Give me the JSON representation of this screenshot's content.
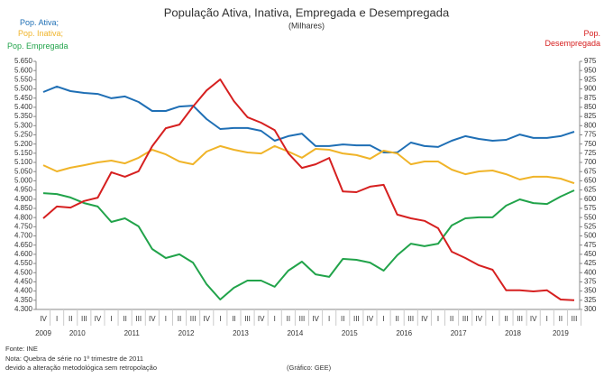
{
  "chart_data": {
    "type": "line",
    "title": "População Ativa, Inativa, Empregada  e Desempregada",
    "subtitle": "(Milhares)",
    "categories": [
      "IV",
      "I",
      "II",
      "III",
      "IV",
      "I",
      "II",
      "III",
      "IV",
      "I",
      "II",
      "III",
      "IV",
      "I",
      "II",
      "III",
      "IV",
      "I",
      "II",
      "III",
      "IV",
      "I",
      "II",
      "III",
      "IV",
      "I",
      "II",
      "III",
      "IV",
      "I",
      "II",
      "III",
      "IV",
      "I",
      "II",
      "III",
      "IV",
      "I",
      "II",
      "III"
    ],
    "years": [
      "2009",
      "2010",
      "2011",
      "2012",
      "2013",
      "2014",
      "2015",
      "2016",
      "2017",
      "2018",
      "2019"
    ],
    "series": [
      {
        "name": "Pop. Ativa;",
        "color": "#1f6fb5",
        "values": [
          5483,
          5513,
          5488,
          5478,
          5473,
          5449,
          5459,
          5429,
          5380,
          5380,
          5404,
          5409,
          5336,
          5282,
          5287,
          5287,
          5272,
          5218,
          5243,
          5257,
          5189,
          5189,
          5198,
          5193,
          5193,
          5154,
          5154,
          5208,
          5189,
          5184,
          5218,
          5243,
          5228,
          5218,
          5223,
          5252,
          5233,
          5233,
          5243,
          5267
        ]
      },
      {
        "name": "Pop. Inativa;",
        "color": "#f0b429",
        "values": [
          5085,
          5051,
          5071,
          5085,
          5100,
          5110,
          5095,
          5125,
          5169,
          5144,
          5105,
          5090,
          5159,
          5189,
          5169,
          5154,
          5149,
          5189,
          5159,
          5125,
          5174,
          5169,
          5149,
          5140,
          5120,
          5164,
          5149,
          5090,
          5105,
          5105,
          5061,
          5036,
          5051,
          5056,
          5036,
          5007,
          5022,
          5022,
          5012,
          4987
        ]
      },
      {
        "name": "Pop. Empregada",
        "color": "#21a34a",
        "values": [
          4933,
          4928,
          4909,
          4879,
          4860,
          4776,
          4796,
          4752,
          4629,
          4580,
          4600,
          4555,
          4437,
          4354,
          4418,
          4457,
          4457,
          4423,
          4511,
          4560,
          4491,
          4477,
          4575,
          4570,
          4555,
          4511,
          4595,
          4658,
          4644,
          4658,
          4757,
          4796,
          4801,
          4801,
          4865,
          4899,
          4879,
          4874,
          4914,
          4948
        ]
      },
      {
        "name": "Pop. Desempregada",
        "color": "#d62020",
        "axis": "y2",
        "values": [
          548,
          580,
          577,
          595,
          604,
          673,
          661,
          676,
          744,
          793,
          803,
          852,
          896,
          926,
          867,
          823,
          808,
          788,
          725,
          685,
          695,
          712,
          621,
          619,
          634,
          639,
          558,
          548,
          541,
          521,
          457,
          440,
          420,
          408,
          352,
          352,
          349,
          352,
          327,
          325
        ]
      }
    ],
    "ylim": [
      4300,
      5650
    ],
    "yticks": [
      {
        "value": 4300,
        "label": "4.300"
      },
      {
        "value": 4350,
        "label": "4.350"
      },
      {
        "value": 4400,
        "label": "4.400"
      },
      {
        "value": 4450,
        "label": "4.450"
      },
      {
        "value": 4500,
        "label": "4.500"
      },
      {
        "value": 4550,
        "label": "4.550"
      },
      {
        "value": 4600,
        "label": "4.600"
      },
      {
        "value": 4650,
        "label": "4.650"
      },
      {
        "value": 4700,
        "label": "4.700"
      },
      {
        "value": 4750,
        "label": "4.750"
      },
      {
        "value": 4800,
        "label": "4.800"
      },
      {
        "value": 4850,
        "label": "4.850"
      },
      {
        "value": 4900,
        "label": "4.900"
      },
      {
        "value": 4950,
        "label": "4.950"
      },
      {
        "value": 5000,
        "label": "5.000"
      },
      {
        "value": 5050,
        "label": "5.050"
      },
      {
        "value": 5100,
        "label": "5.100"
      },
      {
        "value": 5150,
        "label": "5.150"
      },
      {
        "value": 5200,
        "label": "5.200"
      },
      {
        "value": 5250,
        "label": "5.250"
      },
      {
        "value": 5300,
        "label": "5.300"
      },
      {
        "value": 5350,
        "label": "5.350"
      },
      {
        "value": 5400,
        "label": "5.400"
      },
      {
        "value": 5450,
        "label": "5.450"
      },
      {
        "value": 5500,
        "label": "5.500"
      },
      {
        "value": 5550,
        "label": "5.550"
      },
      {
        "value": 5600,
        "label": "5.600"
      },
      {
        "value": 5650,
        "label": "5.650"
      }
    ],
    "y2lim": [
      300,
      975
    ],
    "y2ticks": [
      300,
      325,
      350,
      375,
      400,
      425,
      450,
      475,
      500,
      525,
      550,
      575,
      600,
      625,
      650,
      675,
      700,
      725,
      750,
      775,
      800,
      825,
      850,
      875,
      900,
      925,
      950,
      975
    ],
    "grid": false,
    "source": "Fonte: INE",
    "note": [
      "Nota: Quebra de série no 1º trimestre de 2011",
      "devido a alteração metodológica sem retropolação"
    ],
    "credit": "(Gráfico: GEE)"
  }
}
